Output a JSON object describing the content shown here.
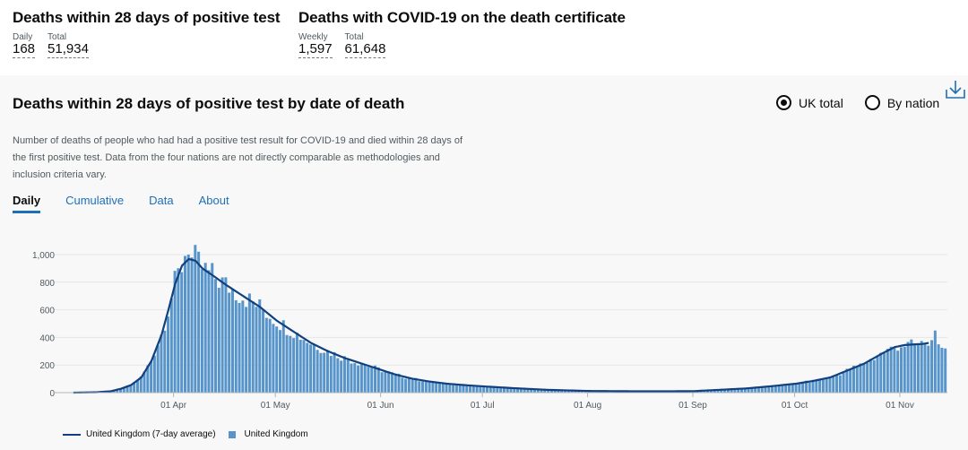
{
  "headline_left": {
    "title": "Deaths within 28 days of positive test",
    "daily_label": "Daily",
    "daily_value": "168",
    "total_label": "Total",
    "total_value": "51,934"
  },
  "headline_right": {
    "title": "Deaths with COVID-19 on the death certificate",
    "weekly_label": "Weekly",
    "weekly_value": "1,597",
    "total_label": "Total",
    "total_value": "61,648"
  },
  "card": {
    "title": "Deaths within 28 days of positive test by date of death",
    "description": "Number of deaths of people who had had a positive test result for COVID-19 and died within 28 days of the first positive test. Data from the four nations are not directly comparable as methodologies and inclusion criteria vary.",
    "radios": [
      {
        "label": "UK total",
        "selected": true
      },
      {
        "label": "By nation",
        "selected": false
      }
    ],
    "download_icon": "download-icon",
    "tabs": [
      {
        "label": "Daily",
        "active": true
      },
      {
        "label": "Cumulative",
        "active": false
      },
      {
        "label": "Data",
        "active": false
      },
      {
        "label": "About",
        "active": false
      }
    ]
  },
  "colors": {
    "bar": "#5694ca",
    "line": "#12407f",
    "link": "#1d70b8"
  },
  "chart_data": {
    "type": "bar",
    "title": "Deaths within 28 days of positive test by date of death",
    "start_date": "2020-03-02",
    "x_ticks": [
      "01 Apr",
      "01 May",
      "01 Jun",
      "01 Jul",
      "01 Aug",
      "01 Sep",
      "01 Oct",
      "01 Nov"
    ],
    "x_tick_day_index": [
      30,
      60,
      91,
      121,
      152,
      183,
      213,
      244
    ],
    "y_ticks": [
      "0",
      "200",
      "400",
      "600",
      "800",
      "1,000"
    ],
    "ylim": [
      0,
      1100
    ],
    "anchor_points_7day_average": [
      [
        0,
        0
      ],
      [
        7,
        3
      ],
      [
        11,
        10
      ],
      [
        14,
        28
      ],
      [
        17,
        55
      ],
      [
        20,
        110
      ],
      [
        23,
        230
      ],
      [
        26,
        420
      ],
      [
        28,
        600
      ],
      [
        30,
        790
      ],
      [
        32,
        920
      ],
      [
        34,
        968
      ],
      [
        36,
        955
      ],
      [
        38,
        900
      ],
      [
        41,
        850
      ],
      [
        45,
        780
      ],
      [
        50,
        700
      ],
      [
        55,
        620
      ],
      [
        60,
        520
      ],
      [
        65,
        440
      ],
      [
        70,
        360
      ],
      [
        75,
        300
      ],
      [
        80,
        250
      ],
      [
        85,
        210
      ],
      [
        90,
        170
      ],
      [
        95,
        130
      ],
      [
        100,
        100
      ],
      [
        105,
        80
      ],
      [
        110,
        65
      ],
      [
        115,
        55
      ],
      [
        121,
        45
      ],
      [
        130,
        32
      ],
      [
        140,
        20
      ],
      [
        152,
        12
      ],
      [
        165,
        10
      ],
      [
        175,
        10
      ],
      [
        183,
        11
      ],
      [
        190,
        20
      ],
      [
        198,
        30
      ],
      [
        205,
        45
      ],
      [
        213,
        65
      ],
      [
        218,
        85
      ],
      [
        223,
        110
      ],
      [
        228,
        160
      ],
      [
        233,
        210
      ],
      [
        238,
        280
      ],
      [
        242,
        330
      ],
      [
        245,
        345
      ],
      [
        248,
        350
      ],
      [
        250,
        352
      ],
      [
        252,
        360
      ]
    ],
    "tail_daily_values": [
      360,
      340,
      380,
      450,
      350,
      325,
      320
    ],
    "series": [
      {
        "name": "United Kingdom (7-day average)",
        "kind": "line"
      },
      {
        "name": "United Kingdom",
        "kind": "bar"
      }
    ],
    "legend": [
      {
        "label": "United Kingdom (7-day average)",
        "kind": "line"
      },
      {
        "label": "United Kingdom",
        "kind": "bar"
      }
    ]
  }
}
